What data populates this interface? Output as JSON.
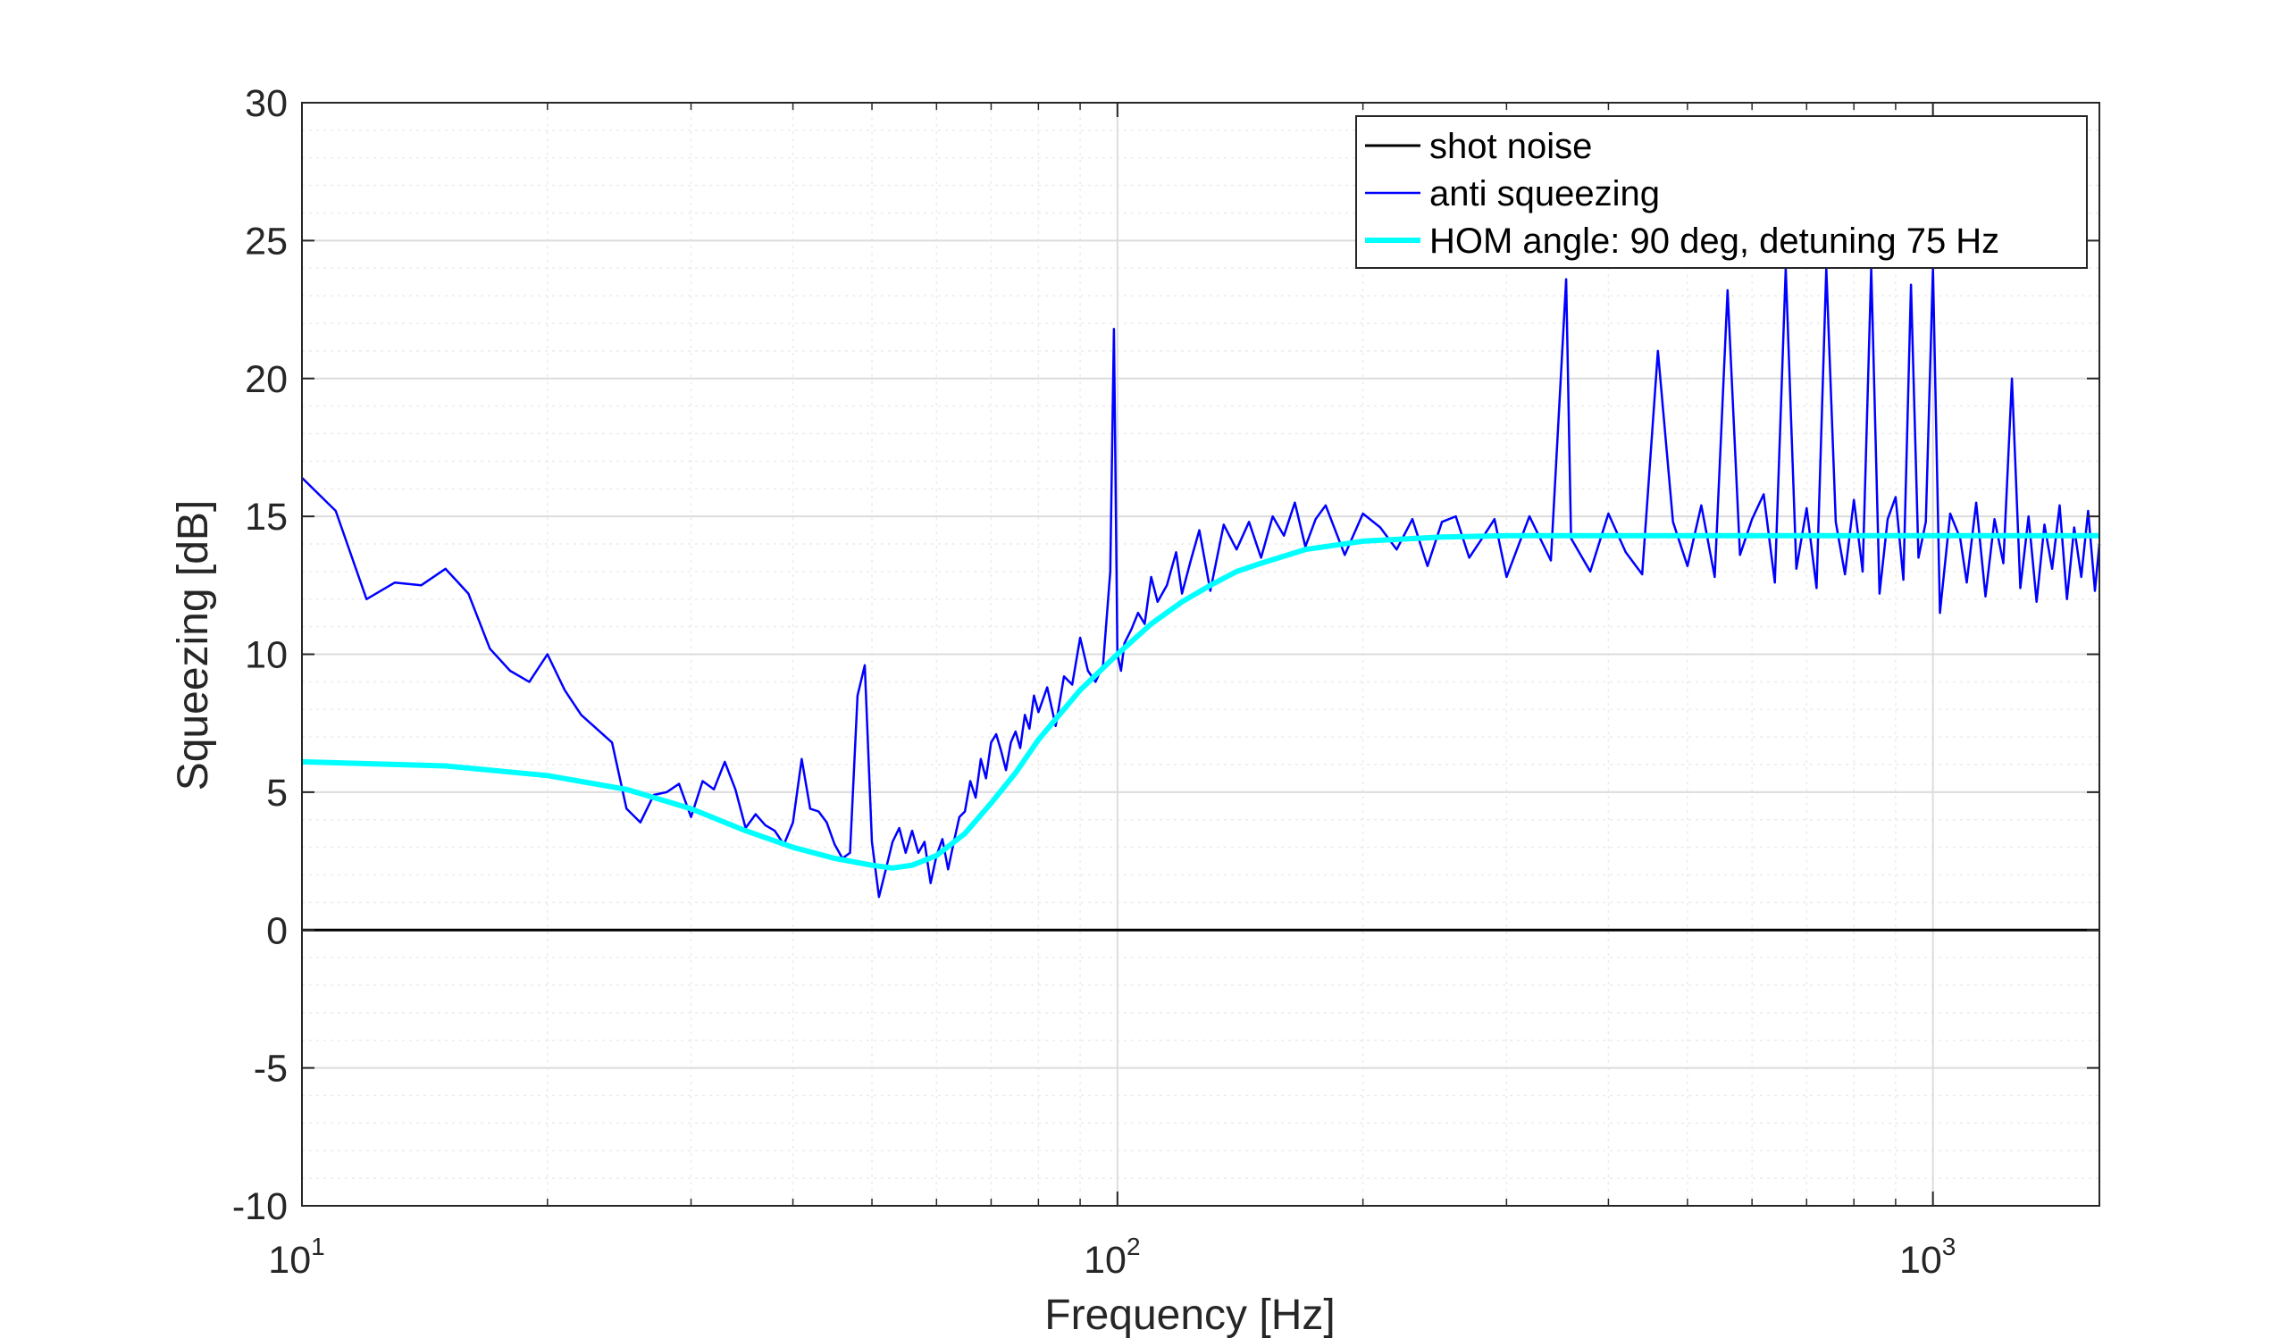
{
  "chart_data": {
    "type": "line",
    "title": "",
    "xlabel": "Frequency [Hz]",
    "ylabel": "Squeezing [dB]",
    "xscale": "log",
    "xlim": [
      10,
      1600
    ],
    "ylim": [
      -10,
      30
    ],
    "yticks": [
      "30",
      "25",
      "20",
      "15",
      "10",
      "5",
      "0",
      "-5",
      "-10"
    ],
    "xticks": [
      {
        "base": "10",
        "exp": "1"
      },
      {
        "base": "10",
        "exp": "2"
      },
      {
        "base": "10",
        "exp": "3"
      }
    ],
    "grid": true,
    "minor_grid": true,
    "legend_position": "top-right",
    "series": [
      {
        "name": "shot noise",
        "color": "#000000",
        "x": [
          10,
          1600
        ],
        "y": [
          0,
          0
        ]
      },
      {
        "name": "anti squeezing",
        "color": "#0000FF",
        "x": [
          10,
          11,
          12,
          13,
          14,
          15,
          16,
          17,
          18,
          19,
          20,
          21,
          22,
          24,
          25,
          26,
          27,
          28,
          29,
          30,
          31,
          32,
          33,
          34,
          35,
          36,
          37,
          38,
          39,
          40,
          41,
          42,
          43,
          44,
          45,
          46,
          47,
          48,
          49,
          50,
          51,
          52,
          53,
          54,
          55,
          56,
          57,
          58,
          59,
          60,
          61,
          62,
          63,
          64,
          65,
          66,
          67,
          68,
          69,
          70,
          71,
          72,
          73,
          74,
          75,
          76,
          77,
          78,
          79,
          80,
          82,
          84,
          86,
          88,
          90,
          92,
          94,
          96,
          98,
          99,
          100,
          101,
          102,
          104,
          106,
          108,
          110,
          112,
          115,
          118,
          120,
          123,
          126,
          130,
          135,
          140,
          145,
          150,
          155,
          160,
          165,
          170,
          175,
          180,
          190,
          200,
          210,
          220,
          230,
          240,
          250,
          260,
          270,
          280,
          290,
          300,
          320,
          340,
          355,
          360,
          380,
          400,
          420,
          440,
          460,
          480,
          500,
          520,
          540,
          560,
          580,
          600,
          620,
          640,
          660,
          680,
          700,
          720,
          740,
          760,
          780,
          800,
          820,
          840,
          860,
          880,
          900,
          920,
          940,
          960,
          980,
          1000,
          1020,
          1050,
          1080,
          1100,
          1130,
          1160,
          1190,
          1220,
          1250,
          1280,
          1310,
          1340,
          1370,
          1400,
          1430,
          1460,
          1490,
          1520,
          1550,
          1580,
          1600
        ],
        "y": [
          16.4,
          15.2,
          12.0,
          12.6,
          12.5,
          13.1,
          12.2,
          10.2,
          9.4,
          9.0,
          10.0,
          8.7,
          7.8,
          6.8,
          4.4,
          3.9,
          4.9,
          5.0,
          5.3,
          4.1,
          5.4,
          5.1,
          6.1,
          5.1,
          3.7,
          4.2,
          3.8,
          3.6,
          3.1,
          3.9,
          6.2,
          4.4,
          4.3,
          3.9,
          3.1,
          2.6,
          2.8,
          8.5,
          9.6,
          3.2,
          1.2,
          2.2,
          3.2,
          3.7,
          2.8,
          3.6,
          2.8,
          3.2,
          1.7,
          2.7,
          3.3,
          2.2,
          3.2,
          4.1,
          4.3,
          5.4,
          4.8,
          6.2,
          5.5,
          6.8,
          7.1,
          6.5,
          5.8,
          6.8,
          7.2,
          6.6,
          7.8,
          7.3,
          8.5,
          7.9,
          8.8,
          7.4,
          9.2,
          8.9,
          10.6,
          9.4,
          9.0,
          9.6,
          13.0,
          21.8,
          10.0,
          9.4,
          10.4,
          10.9,
          11.5,
          11.1,
          12.8,
          11.9,
          12.5,
          13.7,
          12.2,
          13.4,
          14.5,
          12.3,
          14.7,
          13.8,
          14.8,
          13.5,
          15.0,
          14.3,
          15.5,
          13.9,
          14.9,
          15.4,
          13.6,
          15.1,
          14.6,
          13.8,
          14.9,
          13.2,
          14.8,
          15.0,
          13.5,
          14.2,
          14.9,
          12.8,
          15.0,
          13.4,
          23.6,
          14.2,
          13.0,
          15.1,
          13.7,
          12.9,
          21.0,
          14.8,
          13.2,
          15.4,
          12.8,
          23.2,
          13.6,
          14.9,
          15.8,
          12.6,
          24.0,
          13.1,
          15.3,
          12.4,
          24.0,
          14.8,
          12.9,
          15.6,
          13.0,
          24.0,
          12.2,
          14.9,
          15.7,
          12.7,
          23.4,
          13.5,
          14.8,
          24.0,
          11.5,
          15.1,
          14.2,
          12.6,
          15.5,
          12.1,
          14.9,
          13.3,
          20.0,
          12.4,
          15.0,
          11.9,
          14.7,
          13.1,
          15.4,
          12.0,
          14.6,
          12.8,
          15.2,
          12.3,
          14.0
        ]
      },
      {
        "name": "HOM angle: 90 deg, detuning 75 Hz",
        "color": "#00FFFF",
        "x": [
          10,
          15,
          20,
          25,
          30,
          35,
          40,
          45,
          50,
          53,
          56,
          60,
          65,
          70,
          75,
          80,
          90,
          100,
          110,
          120,
          130,
          140,
          150,
          170,
          200,
          250,
          300,
          400,
          600,
          1000,
          1600
        ],
        "y": [
          6.1,
          5.95,
          5.6,
          5.1,
          4.4,
          3.6,
          3.0,
          2.6,
          2.35,
          2.25,
          2.35,
          2.7,
          3.5,
          4.6,
          5.7,
          6.9,
          8.7,
          10.0,
          11.1,
          11.9,
          12.5,
          13.0,
          13.3,
          13.8,
          14.1,
          14.25,
          14.3,
          14.3,
          14.3,
          14.3,
          14.3
        ]
      }
    ]
  }
}
